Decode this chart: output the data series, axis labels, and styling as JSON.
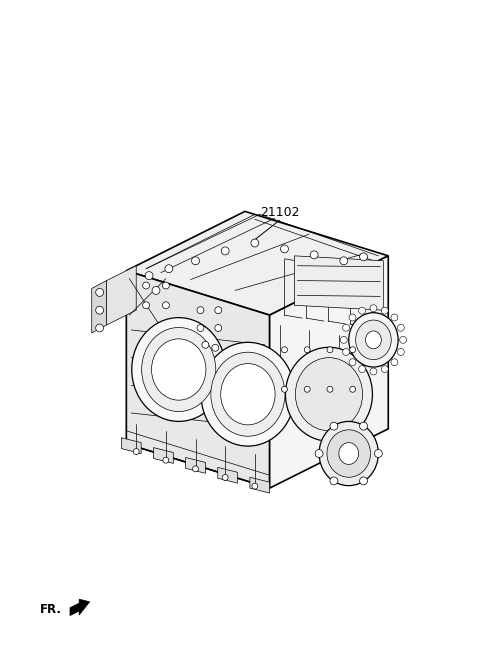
{
  "background_color": "#ffffff",
  "part_number": "21102",
  "fr_label": "FR.",
  "line_color": "#000000",
  "fig_width": 4.8,
  "fig_height": 6.55,
  "dpi": 100,
  "lw_main": 0.9,
  "lw_thin": 0.5,
  "lw_thick": 1.2
}
